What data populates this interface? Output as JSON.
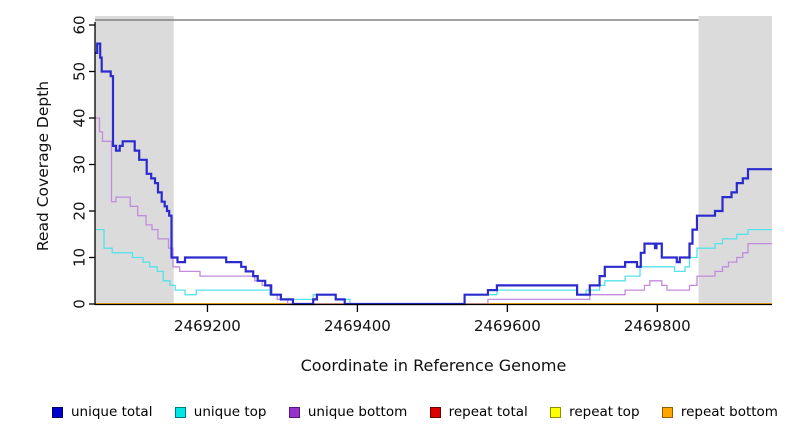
{
  "figure": {
    "xlabel": "Coordinate in Reference Genome",
    "ylabel": "Read Coverage Depth"
  },
  "legend": {
    "items": [
      {
        "label": "unique total",
        "color": "#0000CD",
        "border": "#00006B"
      },
      {
        "label": "unique top",
        "color": "#00E5E5",
        "border": "#007B7B"
      },
      {
        "label": "unique bottom",
        "color": "#9932CC",
        "border": "#551A7A"
      },
      {
        "label": "repeat total",
        "color": "#DD0000",
        "border": "#6B0000"
      },
      {
        "label": "repeat top",
        "color": "#FFFF00",
        "border": "#8F8F00"
      },
      {
        "label": "repeat bottom",
        "color": "#FFA500",
        "border": "#8F5E00"
      }
    ]
  },
  "chart_data": {
    "type": "line",
    "step": true,
    "title": "",
    "xlabel": "Coordinate in Reference Genome",
    "ylabel": "Read Coverage Depth",
    "xlim": [
      2469050,
      2469953
    ],
    "ylim": [
      0,
      60
    ],
    "x_ticks": [
      2469200,
      2469400,
      2469600,
      2469800
    ],
    "y_ticks": [
      0,
      10,
      20,
      30,
      40,
      50,
      60
    ],
    "grid": false,
    "legend_position": "bottom",
    "axis_color": "#000000",
    "top_border_color": "#828282",
    "shaded_regions": [
      {
        "name": "shaded-region-left",
        "x0": 2469050,
        "x1": 2469155,
        "color": "#DBDBDB"
      },
      {
        "name": "shaded-region-right",
        "x0": 2469855,
        "x1": 2469953,
        "color": "#DBDBDB"
      }
    ],
    "series": [
      {
        "name": "repeat total",
        "legend_color": "#DD0000",
        "line_color": "#B00000",
        "width": 1.2,
        "steps": [
          [
            2469050,
            0
          ]
        ]
      },
      {
        "name": "repeat top",
        "legend_color": "#FFFF00",
        "line_color": "#FFFF00",
        "width": 1.2,
        "steps": [
          [
            2469050,
            0
          ]
        ]
      },
      {
        "name": "repeat bottom",
        "legend_color": "#FFA500",
        "line_color": "#FFA500",
        "width": 1.8,
        "steps": [
          [
            2469050,
            0
          ]
        ]
      },
      {
        "name": "unique bottom",
        "legend_color": "#9932CC",
        "line_color": "#C18CDE",
        "width": 1.3,
        "steps": [
          [
            2469050,
            40
          ],
          [
            2469056,
            37
          ],
          [
            2469060,
            35
          ],
          [
            2469072,
            22
          ],
          [
            2469078,
            23
          ],
          [
            2469097,
            21
          ],
          [
            2469107,
            19
          ],
          [
            2469118,
            17
          ],
          [
            2469126,
            16
          ],
          [
            2469134,
            14
          ],
          [
            2469148,
            12
          ],
          [
            2469154,
            8
          ],
          [
            2469163,
            7
          ],
          [
            2469190,
            6
          ],
          [
            2469263,
            5
          ],
          [
            2469273,
            4
          ],
          [
            2469283,
            2
          ],
          [
            2469293,
            1
          ],
          [
            2469307,
            0
          ],
          [
            2469574,
            1
          ],
          [
            2469710,
            2
          ],
          [
            2469757,
            3
          ],
          [
            2469783,
            4
          ],
          [
            2469790,
            5
          ],
          [
            2469806,
            4
          ],
          [
            2469813,
            3
          ],
          [
            2469843,
            4
          ],
          [
            2469853,
            6
          ],
          [
            2469877,
            7
          ],
          [
            2469887,
            8
          ],
          [
            2469895,
            9
          ],
          [
            2469906,
            10
          ],
          [
            2469914,
            11
          ],
          [
            2469921,
            13
          ]
        ]
      },
      {
        "name": "unique top",
        "legend_color": "#00E5E5",
        "line_color": "#56E2EA",
        "width": 1.3,
        "steps": [
          [
            2469050,
            16
          ],
          [
            2469062,
            12
          ],
          [
            2469073,
            11
          ],
          [
            2469100,
            10
          ],
          [
            2469114,
            9
          ],
          [
            2469123,
            8
          ],
          [
            2469133,
            7
          ],
          [
            2469141,
            5
          ],
          [
            2469150,
            4
          ],
          [
            2469157,
            3
          ],
          [
            2469170,
            2
          ],
          [
            2469185,
            3
          ],
          [
            2469283,
            2
          ],
          [
            2469297,
            1
          ],
          [
            2469341,
            2
          ],
          [
            2469371,
            1
          ],
          [
            2469390,
            0
          ],
          [
            2469543,
            2
          ],
          [
            2469586,
            3
          ],
          [
            2469693,
            2
          ],
          [
            2469705,
            3
          ],
          [
            2469723,
            4
          ],
          [
            2469730,
            5
          ],
          [
            2469757,
            6
          ],
          [
            2469777,
            8
          ],
          [
            2469823,
            7
          ],
          [
            2469837,
            8
          ],
          [
            2469843,
            10
          ],
          [
            2469853,
            12
          ],
          [
            2469877,
            13
          ],
          [
            2469887,
            14
          ],
          [
            2469906,
            15
          ],
          [
            2469921,
            16
          ]
        ]
      },
      {
        "name": "unique total",
        "legend_color": "#0000CD",
        "line_color": "#2A2ACE",
        "width": 2.2,
        "steps": [
          [
            2469050,
            54
          ],
          [
            2469053,
            56
          ],
          [
            2469057,
            53
          ],
          [
            2469059,
            50
          ],
          [
            2469071,
            49
          ],
          [
            2469074,
            34
          ],
          [
            2469078,
            33
          ],
          [
            2469083,
            34
          ],
          [
            2469087,
            35
          ],
          [
            2469103,
            33
          ],
          [
            2469109,
            31
          ],
          [
            2469119,
            28
          ],
          [
            2469125,
            27
          ],
          [
            2469130,
            26
          ],
          [
            2469134,
            24
          ],
          [
            2469139,
            22
          ],
          [
            2469143,
            21
          ],
          [
            2469146,
            20
          ],
          [
            2469149,
            19
          ],
          [
            2469152,
            10
          ],
          [
            2469160,
            9
          ],
          [
            2469170,
            10
          ],
          [
            2469225,
            9
          ],
          [
            2469245,
            8
          ],
          [
            2469251,
            7
          ],
          [
            2469261,
            6
          ],
          [
            2469267,
            5
          ],
          [
            2469277,
            4
          ],
          [
            2469285,
            2
          ],
          [
            2469298,
            1
          ],
          [
            2469314,
            0
          ],
          [
            2469341,
            1
          ],
          [
            2469346,
            2
          ],
          [
            2469371,
            1
          ],
          [
            2469383,
            0
          ],
          [
            2469543,
            2
          ],
          [
            2469574,
            3
          ],
          [
            2469586,
            4
          ],
          [
            2469693,
            2
          ],
          [
            2469710,
            4
          ],
          [
            2469723,
            6
          ],
          [
            2469730,
            8
          ],
          [
            2469757,
            9
          ],
          [
            2469773,
            8
          ],
          [
            2469778,
            11
          ],
          [
            2469783,
            13
          ],
          [
            2469797,
            12
          ],
          [
            2469799,
            13
          ],
          [
            2469806,
            10
          ],
          [
            2469826,
            9
          ],
          [
            2469830,
            10
          ],
          [
            2469843,
            13
          ],
          [
            2469847,
            16
          ],
          [
            2469853,
            19
          ],
          [
            2469877,
            20
          ],
          [
            2469887,
            23
          ],
          [
            2469899,
            24
          ],
          [
            2469906,
            26
          ],
          [
            2469914,
            27
          ],
          [
            2469921,
            29
          ]
        ]
      }
    ]
  }
}
